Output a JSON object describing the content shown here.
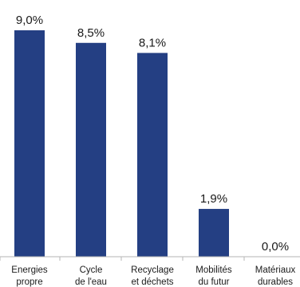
{
  "chart_data": {
    "type": "bar",
    "categories": [
      [
        "Energies",
        "propre"
      ],
      [
        "Cycle",
        "de l'eau"
      ],
      [
        "Recyclage",
        "et déchets"
      ],
      [
        "Mobilités",
        "du futur"
      ],
      [
        "Matériaux",
        "durables"
      ]
    ],
    "values": [
      9.0,
      8.5,
      8.1,
      1.9,
      0.0
    ],
    "value_labels": [
      "9,0%",
      "8,5%",
      "8,1%",
      "1,9%",
      "0,0%"
    ],
    "unit": "%",
    "ylim": [
      0,
      9.6
    ],
    "grid": false,
    "legend": "none",
    "bar_color": "#243f83",
    "axis_color": "#b5b5b5"
  }
}
